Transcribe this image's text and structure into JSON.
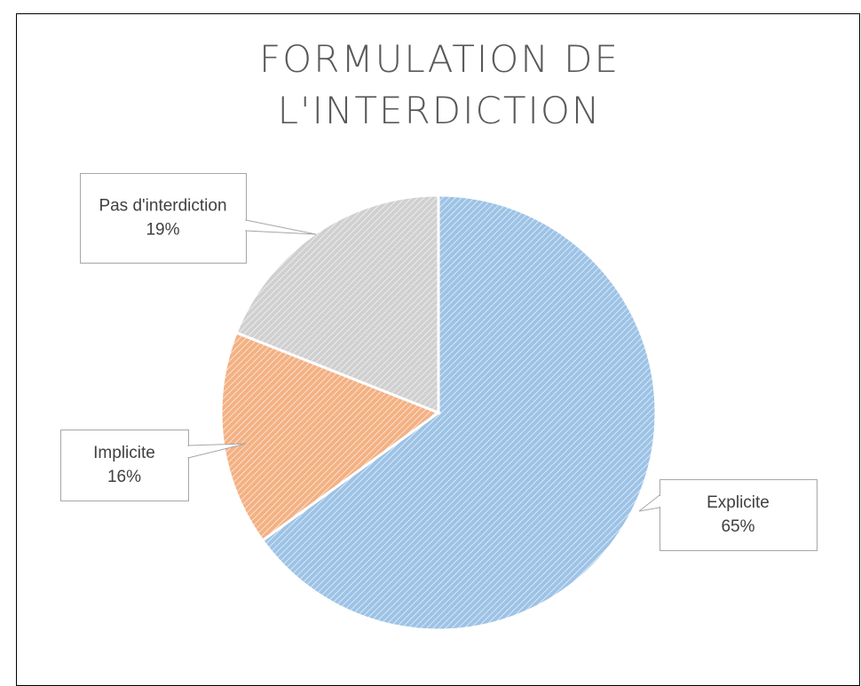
{
  "chart_data": {
    "type": "pie",
    "title": "FORMULATION DE L'INTERDICTION",
    "categories": [
      "Explicite",
      "Implicite",
      "Pas d'interdiction"
    ],
    "values": [
      65,
      16,
      19
    ],
    "value_labels": [
      "65%",
      "16%",
      "19%"
    ],
    "colors": [
      "#9dc3e6",
      "#f4b183",
      "#d0d0d0"
    ]
  }
}
